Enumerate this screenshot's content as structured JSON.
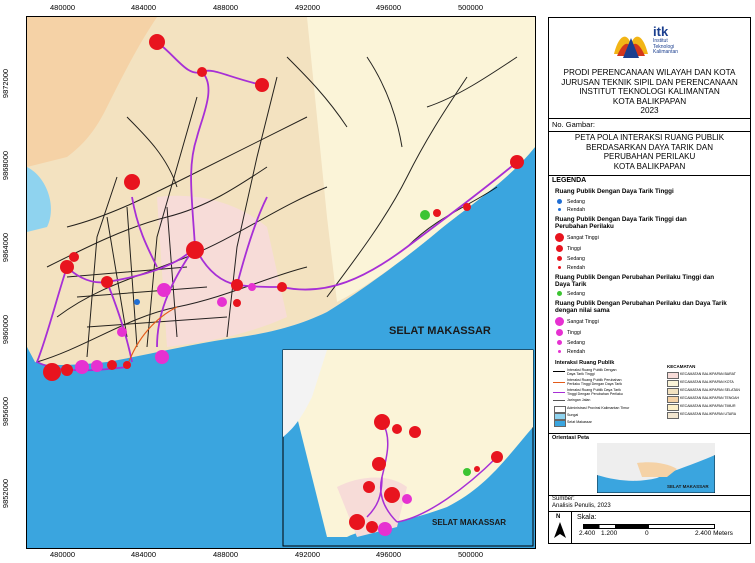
{
  "map": {
    "sea_label": "SELAT MAKASSAR",
    "inset_sea_label": "SELAT MAKASSAR",
    "x_ticks": [
      "480000",
      "484000",
      "488000",
      "492000",
      "496000",
      "500000"
    ],
    "y_ticks": [
      "9872000",
      "9868000",
      "9864000",
      "9860000",
      "9856000",
      "9852000"
    ]
  },
  "colors": {
    "sea": "#3aa5df",
    "land_north": "#f3e2c0",
    "land_east": "#fbf4d8",
    "land_west": "#f5d2a6",
    "land_pink": "#f7dcd8",
    "red_point": "#e8141e",
    "magenta_point": "#e631d1",
    "green_point": "#3cc432",
    "blue_point": "#1f6ed4",
    "network_line": "#a72fd6"
  },
  "panel": {
    "logo_text": "itk",
    "logo_sub1": "Institut",
    "logo_sub2": "Teknologi",
    "logo_sub3": "Kalimantan",
    "title_lines": [
      "PRODI PERENCANAAN WILAYAH DAN KOTA",
      "JURUSAN TEKNIK SIPIL DAN PERENCANAAN",
      "INSTITUT TEKNOLOGI KALIMANTAN",
      "KOTA BALIKPAPAN",
      "2023"
    ],
    "no_gambar": "No. Gambar:",
    "map_title_lines": [
      "PETA POLA INTERAKSI RUANG PUBLIK",
      "BERDASARKAN DAYA TARIK DAN",
      "PERUBAHAN PERILAKU",
      "KOTA BALIKPAPAN"
    ],
    "legenda": "LEGENDA",
    "groups": [
      {
        "title": "Ruang Publik Dengan Daya Tarik Tinggi",
        "items": [
          "Sedang",
          "Rendah"
        ]
      },
      {
        "title": "Ruang Publik Dengan Daya Tarik Tinggi dan Perubahan Perilaku",
        "items": [
          "Sangat Tinggi",
          "Tinggi",
          "Sedang",
          "Rendah"
        ]
      },
      {
        "title": "Ruang Publik Dengan Perubahan Perilaku Tinggi dan Daya Tarik",
        "items": [
          "Sedang"
        ]
      },
      {
        "title": "Ruang Publik Dengan Perubahan Perilaku dan Daya Tarik dengan nilai sama",
        "items": [
          "Sangat Tinggi",
          "Tinggi",
          "Sedang",
          "Rendah"
        ]
      }
    ],
    "interaksi_title": "Interaksi Ruang Publik",
    "interaksi_items": [
      "Interaksi Ruang Publik Dengan Daya Tarik Tinggi",
      "Interaksi Ruang Publik Perubahan Perilaku Tinggi Dengan Daya Tarik",
      "Interaksi Ruang Publik Daya Tarik Tinggi Dengan Perubahan Perilaku",
      "Jaringan Jalan",
      "Administrasi Provinsi Kalimantan Timur",
      "Sungai",
      "Selat Makassar"
    ],
    "kecamatan_title": "KECAMATAN",
    "kecamatan_items": [
      "KECAMATAN BALIKPAPAN BARAT",
      "KECAMATAN BALIKPAPAN KOTA",
      "KECAMATAN BALIKPAPAN SELATAN",
      "KECAMATAN BALIKPAPAN TENGAH",
      "KECAMATAN BALIKPAPAN TIMUR",
      "KECAMATAN BALIKPAPAN UTARA"
    ],
    "orientasi": "Orientasi Peta",
    "orientasi_sea": "SELAT MAKASSAR",
    "sumber_label": "Sumber:",
    "sumber_value": "Analisis Penulis, 2023",
    "north": "N",
    "skala_label": "Skala:",
    "scale_ticks": [
      "2.400",
      "1.200",
      "0",
      "2.400 Meters"
    ]
  }
}
